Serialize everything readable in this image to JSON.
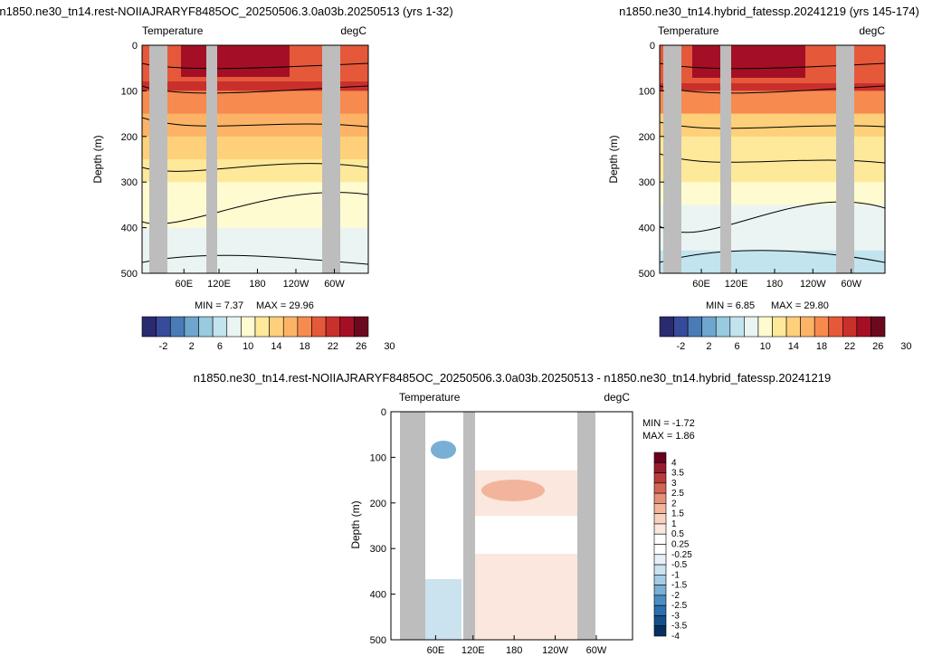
{
  "colors": {
    "palette_abs": [
      "#2a2a6e",
      "#364b9a",
      "#4a7bb7",
      "#6ea6cd",
      "#98cae0",
      "#c2e4ef",
      "#eaf4f2",
      "#fefbd0",
      "#fee99a",
      "#fed07a",
      "#fdb366",
      "#f68a4f",
      "#e6583a",
      "#c9302c",
      "#a50f25",
      "#6b0a1e"
    ],
    "palette_diff": [
      "#053061",
      "#154f8a",
      "#2a6ead",
      "#4a8dc2",
      "#79afd4",
      "#a5cce3",
      "#cbe2ef",
      "#e8f1f7",
      "#ffffff",
      "#ffffff",
      "#fbe7dd",
      "#f8d2c0",
      "#f2b59b",
      "#e6907a",
      "#d36556",
      "#ba3a3a",
      "#981b2d",
      "#67001f"
    ],
    "land": "#bdbdbd"
  },
  "chart_data": [
    {
      "type": "heatmap",
      "id": "left",
      "title": "n1850.ne30_tn14.rest-NOIIAJRARYF8485OC_20250506.3.0a03b.20250513 (yrs 1-32)",
      "subtitle_left": "Temperature",
      "subtitle_right": "degC",
      "ylabel": "Depth (m)",
      "ylim": [
        500,
        0
      ],
      "yticks": [
        "0",
        "100",
        "200",
        "300",
        "400",
        "500"
      ],
      "xticks": [
        "60E",
        "120E",
        "180",
        "120W",
        "60W"
      ],
      "min_text": "MIN =   7.37",
      "max_text": "MAX =  29.96",
      "colorbar_labels": [
        "-2",
        "2",
        "6",
        "10",
        "14",
        "18",
        "22",
        "26",
        "30"
      ],
      "depth_levels": [
        0,
        50,
        100,
        150,
        200,
        250,
        300,
        350,
        400,
        450,
        500
      ],
      "temperature_profile": [
        27,
        26,
        22,
        19,
        17,
        15,
        13,
        12,
        11,
        10,
        9
      ]
    },
    {
      "type": "heatmap",
      "id": "right",
      "title": "n1850.ne30_tn14.hybrid_fatessp.20241219 (yrs 145-174)",
      "subtitle_left": "Temperature",
      "subtitle_right": "degC",
      "ylabel": "Depth (m)",
      "ylim": [
        500,
        0
      ],
      "yticks": [
        "0",
        "100",
        "200",
        "300",
        "400",
        "500"
      ],
      "xticks": [
        "60E",
        "120E",
        "180",
        "120W",
        "60W"
      ],
      "min_text": "MIN =   6.85",
      "max_text": "MAX =  29.80",
      "colorbar_labels": [
        "-2",
        "2",
        "6",
        "10",
        "14",
        "18",
        "22",
        "26",
        "30"
      ],
      "depth_levels": [
        0,
        50,
        100,
        150,
        200,
        250,
        300,
        350,
        400,
        450,
        500
      ],
      "temperature_profile": [
        27,
        26,
        22,
        18,
        16,
        14,
        12,
        11,
        10,
        9,
        8
      ]
    },
    {
      "type": "heatmap",
      "id": "diff",
      "title": "n1850.ne30_tn14.rest-NOIIAJRARYF8485OC_20250506.3.0a03b.20250513 - n1850.ne30_tn14.hybrid_fatessp.20241219",
      "subtitle_left": "Temperature",
      "subtitle_right": "degC",
      "ylabel": "Depth (m)",
      "ylim": [
        500,
        0
      ],
      "yticks": [
        "0",
        "100",
        "200",
        "300",
        "400",
        "500"
      ],
      "xticks": [
        "60E",
        "120E",
        "180",
        "120W",
        "60W"
      ],
      "min_text": "MIN =  -1.72",
      "max_text": "MAX =   1.86",
      "colorbar_labels": [
        "4",
        "3.5",
        "3",
        "2.5",
        "2",
        "1.5",
        "1",
        "0.5",
        "0.25",
        "-0.25",
        "-0.5",
        "-1",
        "-1.5",
        "-2",
        "-2.5",
        "-3",
        "-3.5",
        "-4"
      ]
    }
  ]
}
